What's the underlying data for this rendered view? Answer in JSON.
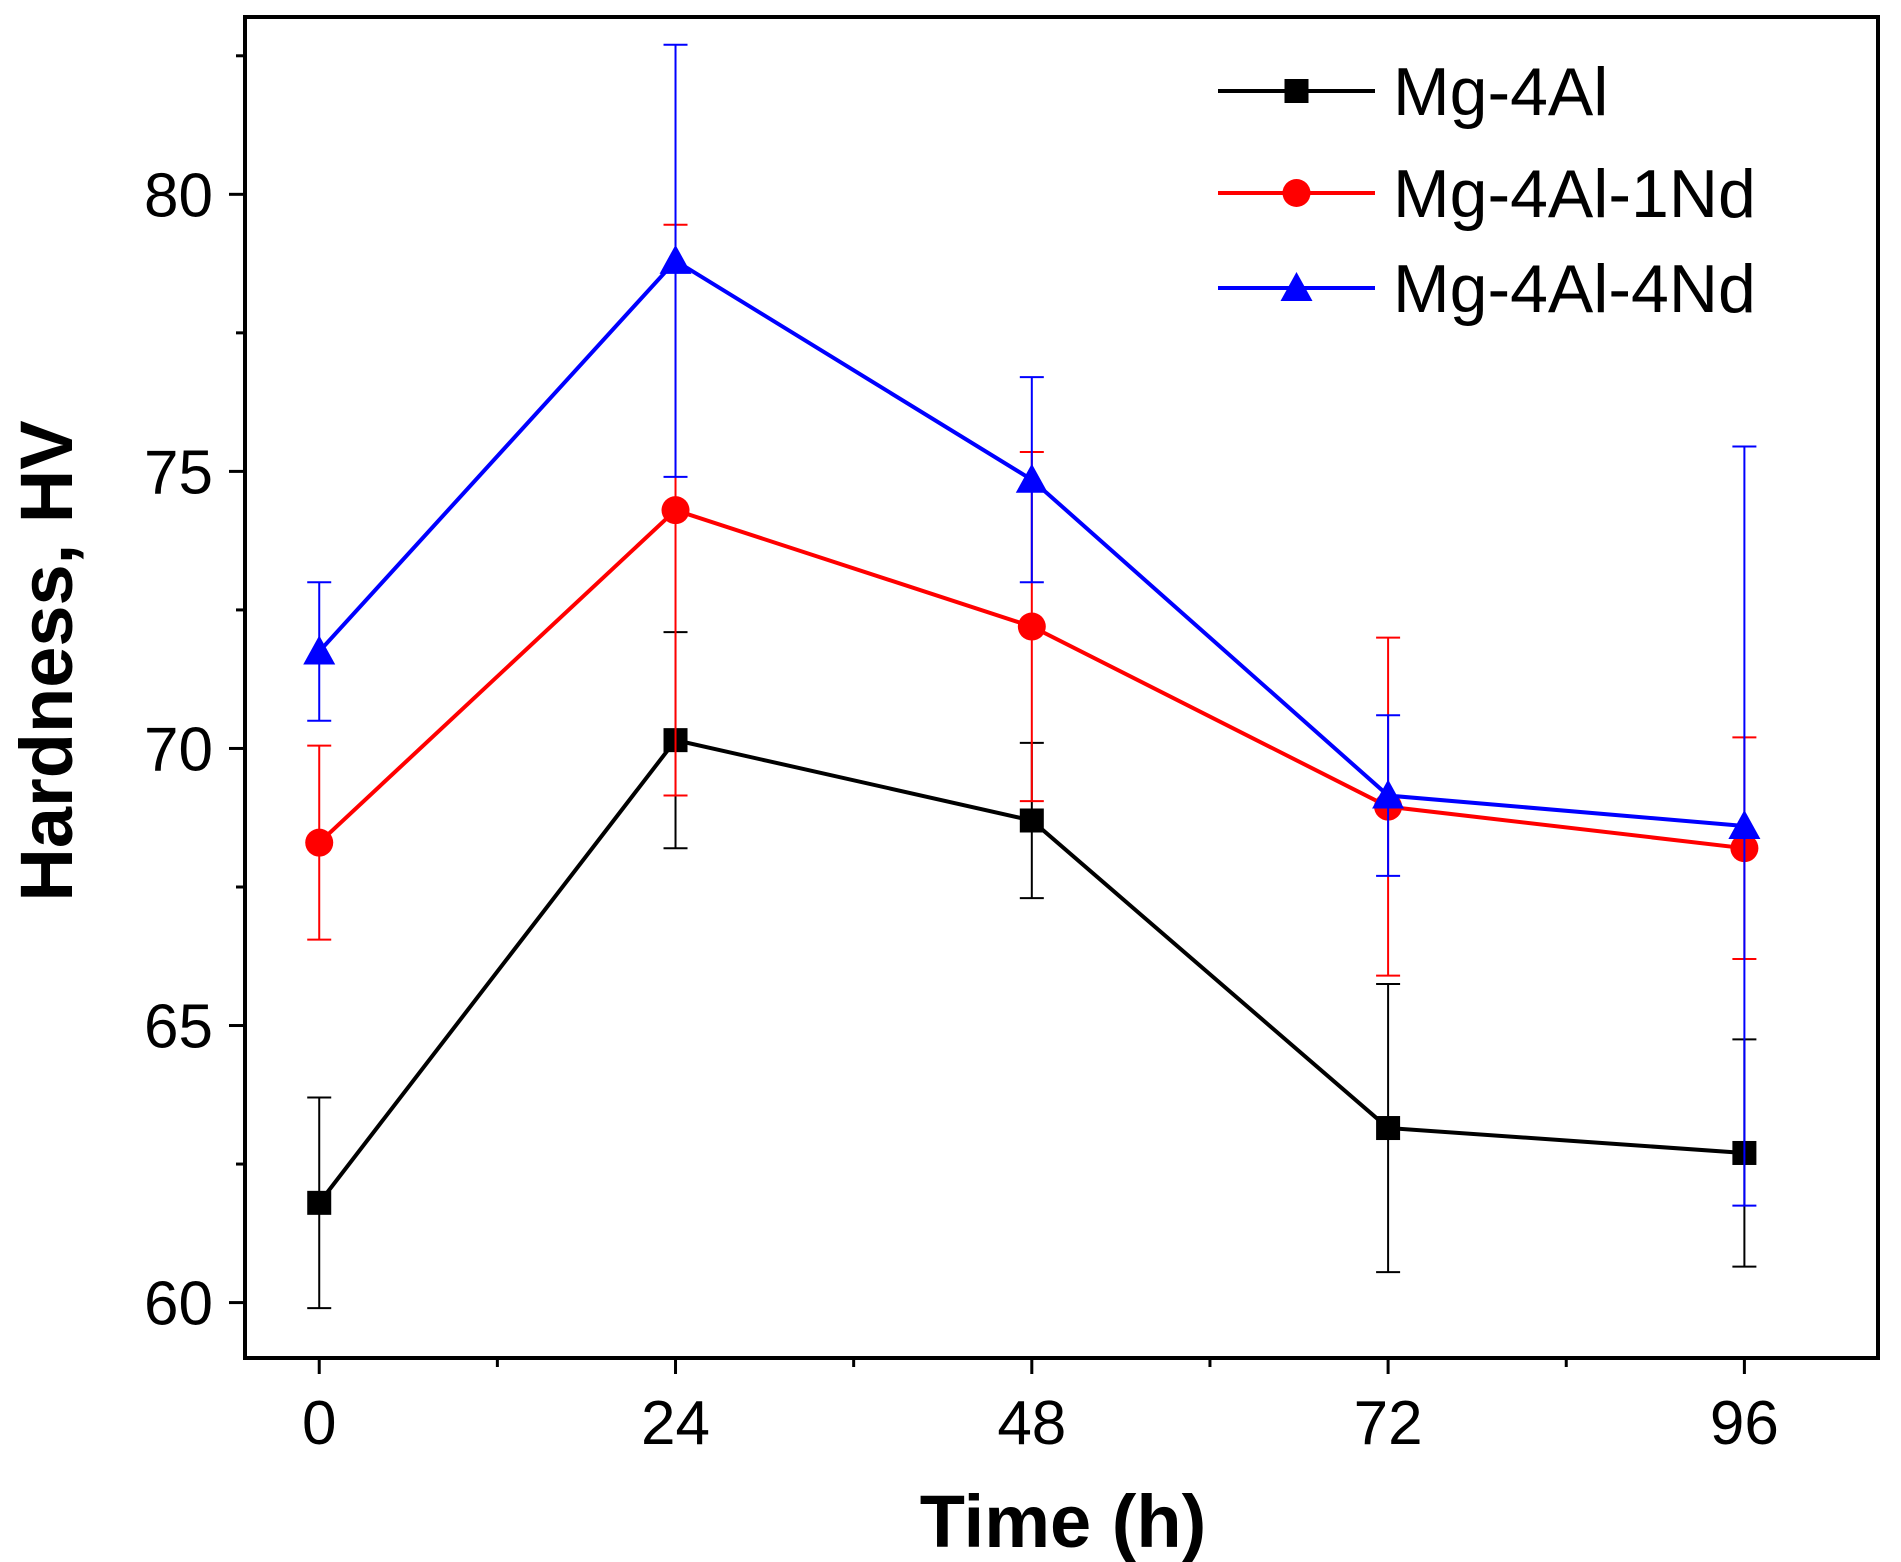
{
  "chart_data": {
    "type": "line",
    "title": "",
    "xlabel": "Time (h)",
    "ylabel": "Hardness, HV",
    "x": [
      0,
      24,
      48,
      72,
      96
    ],
    "xlim": [
      -5,
      105
    ],
    "ylim": [
      59,
      83.2
    ],
    "xticks": [
      0,
      24,
      48,
      72,
      96
    ],
    "xticks_minor": [
      12,
      36,
      60,
      84
    ],
    "yticks": [
      60,
      65,
      70,
      75,
      80
    ],
    "yticks_minor": [
      62.5,
      67.5,
      72.5,
      77.5,
      82.5
    ],
    "grid": false,
    "legend_position": "top-right",
    "series": [
      {
        "name": "Mg-4Al",
        "color": "#000000",
        "marker": "square",
        "values": [
          61.8,
          70.15,
          68.7,
          63.15,
          62.7
        ],
        "errors": [
          1.9,
          1.95,
          1.4,
          2.6,
          2.05
        ]
      },
      {
        "name": "Mg-4Al-1Nd",
        "color": "#ff0000",
        "marker": "circle",
        "values": [
          68.3,
          74.3,
          72.2,
          68.95,
          68.2
        ],
        "errors": [
          1.75,
          5.15,
          3.15,
          3.05,
          2.0
        ]
      },
      {
        "name": "Mg-4Al-4Nd",
        "color": "#0000ff",
        "marker": "triangle",
        "values": [
          71.75,
          78.8,
          74.85,
          69.15,
          68.6
        ],
        "errors": [
          1.25,
          3.9,
          1.85,
          1.45,
          6.85
        ]
      }
    ]
  }
}
